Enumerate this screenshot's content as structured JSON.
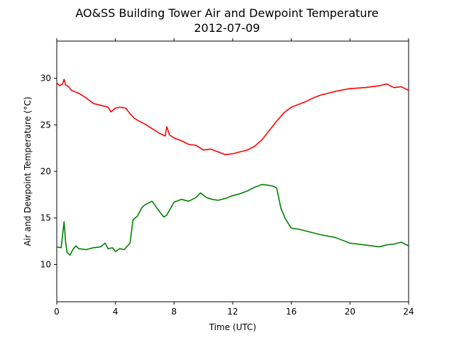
{
  "chart_data": {
    "type": "line",
    "title": "AO&SS Building Tower Air and Dewpoint Temperature",
    "subtitle": "2012-07-09",
    "xlabel": "Time (UTC)",
    "ylabel": "Air and Dewpoint Temperature (°C)",
    "xlim": [
      0,
      24
    ],
    "ylim": [
      6,
      34
    ],
    "xticks": [
      0,
      4,
      8,
      12,
      16,
      20,
      24
    ],
    "yticks": [
      10,
      15,
      20,
      25,
      30
    ],
    "grid": false,
    "legend": "none",
    "series": [
      {
        "color": "#ff0000",
        "x": [
          0,
          0.2,
          0.4,
          0.5,
          0.6,
          0.8,
          1.0,
          1.5,
          2.0,
          2.5,
          3.0,
          3.5,
          3.7,
          4.0,
          4.3,
          4.7,
          5.0,
          5.3,
          5.5,
          6.0,
          6.5,
          7.0,
          7.4,
          7.5,
          7.7,
          8.0,
          8.5,
          9.0,
          9.5,
          10.0,
          10.5,
          11.0,
          11.5,
          12.0,
          12.5,
          13.0,
          13.5,
          14.0,
          14.5,
          15.0,
          15.5,
          16.0,
          16.5,
          17.0,
          17.5,
          18.0,
          18.5,
          19.0,
          20.0,
          21.0,
          22.0,
          22.5,
          23.0,
          23.5,
          24.0
        ],
        "y": [
          29.5,
          29.2,
          29.4,
          29.9,
          29.3,
          29.1,
          28.7,
          28.4,
          27.9,
          27.3,
          27.1,
          26.9,
          26.4,
          26.8,
          26.9,
          26.8,
          26.2,
          25.7,
          25.5,
          25.1,
          24.6,
          24.1,
          23.8,
          24.8,
          23.9,
          23.6,
          23.3,
          22.9,
          22.8,
          22.3,
          22.4,
          22.1,
          21.8,
          21.9,
          22.1,
          22.3,
          22.7,
          23.4,
          24.4,
          25.4,
          26.3,
          26.9,
          27.2,
          27.5,
          27.9,
          28.2,
          28.4,
          28.6,
          28.9,
          29.0,
          29.2,
          29.4,
          29.0,
          29.1,
          28.7
        ]
      },
      {
        "color": "#008000",
        "x": [
          0,
          0.3,
          0.5,
          0.6,
          0.7,
          0.9,
          1.1,
          1.3,
          1.5,
          2.0,
          2.5,
          3.0,
          3.3,
          3.5,
          3.8,
          4.0,
          4.3,
          4.6,
          5.0,
          5.2,
          5.5,
          5.8,
          6.0,
          6.5,
          7.0,
          7.3,
          7.5,
          8.0,
          8.5,
          9.0,
          9.5,
          9.8,
          10.2,
          10.6,
          11.0,
          11.5,
          12.0,
          12.5,
          13.0,
          13.5,
          14.0,
          14.5,
          14.8,
          15.0,
          15.3,
          15.6,
          16.0,
          16.5,
          17.0,
          18.0,
          19.0,
          20.0,
          21.0,
          22.0,
          22.5,
          23.0,
          23.5,
          24.0
        ],
        "y": [
          11.9,
          11.8,
          14.6,
          12.5,
          11.3,
          11.0,
          11.6,
          12.0,
          11.7,
          11.6,
          11.8,
          11.9,
          12.3,
          11.7,
          11.8,
          11.4,
          11.7,
          11.6,
          12.3,
          14.8,
          15.2,
          16.1,
          16.4,
          16.8,
          15.7,
          15.1,
          15.3,
          16.7,
          17.0,
          16.8,
          17.2,
          17.7,
          17.2,
          17.0,
          16.9,
          17.1,
          17.4,
          17.6,
          17.9,
          18.3,
          18.6,
          18.5,
          18.4,
          18.2,
          16.0,
          14.9,
          13.9,
          13.8,
          13.6,
          13.2,
          12.9,
          12.3,
          12.1,
          11.9,
          12.1,
          12.2,
          12.4,
          12.0
        ]
      }
    ]
  }
}
